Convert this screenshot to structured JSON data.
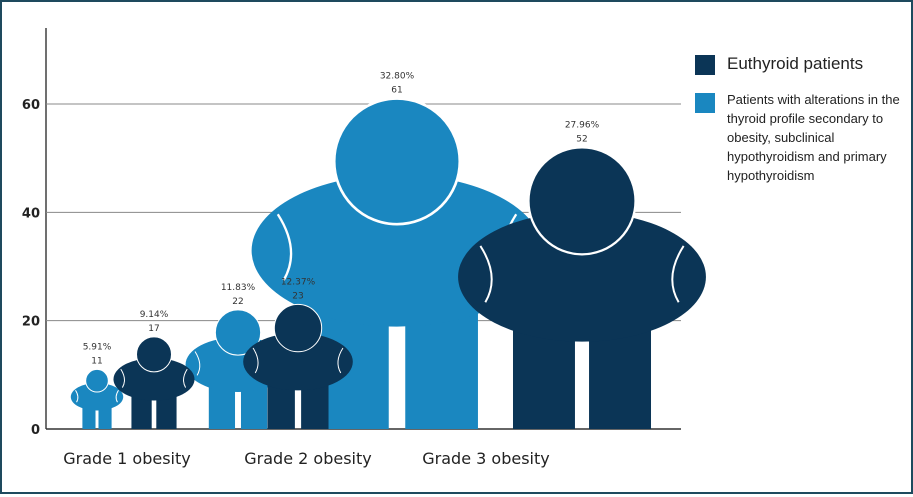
{
  "chart_data": {
    "type": "bar",
    "categories": [
      "Grade 1 obesity",
      "Grade 2 obesity",
      "Grade 3 obesity"
    ],
    "series": [
      {
        "name": "Patients with alterations in the thyroid profile secondary to obesity, subclinical hypothyroidism and primary hypothyroidism",
        "color": "#1a87c0",
        "values": [
          11,
          22,
          61
        ],
        "percent_labels": [
          "5.91%",
          "11.83%",
          "32.80%"
        ]
      },
      {
        "name": "Euthyroid patients",
        "color": "#0b3556",
        "values": [
          17,
          23,
          52
        ],
        "percent_labels": [
          "9.14%",
          "12.37%",
          "27.96%"
        ]
      }
    ],
    "y_ticks": [
      0,
      20,
      40,
      60
    ],
    "ylim": [
      0,
      75
    ],
    "grid": true,
    "legend_position": "right",
    "marker": "human-figure-icon"
  },
  "legend": {
    "items": [
      {
        "label": "Euthyroid patients",
        "color": "#0b3556"
      },
      {
        "label": "Patients with alterations in the thyroid profile secondary to obesity, subclinical hypothyroidism and primary hypothyroidism",
        "color": "#1a87c0"
      }
    ]
  }
}
